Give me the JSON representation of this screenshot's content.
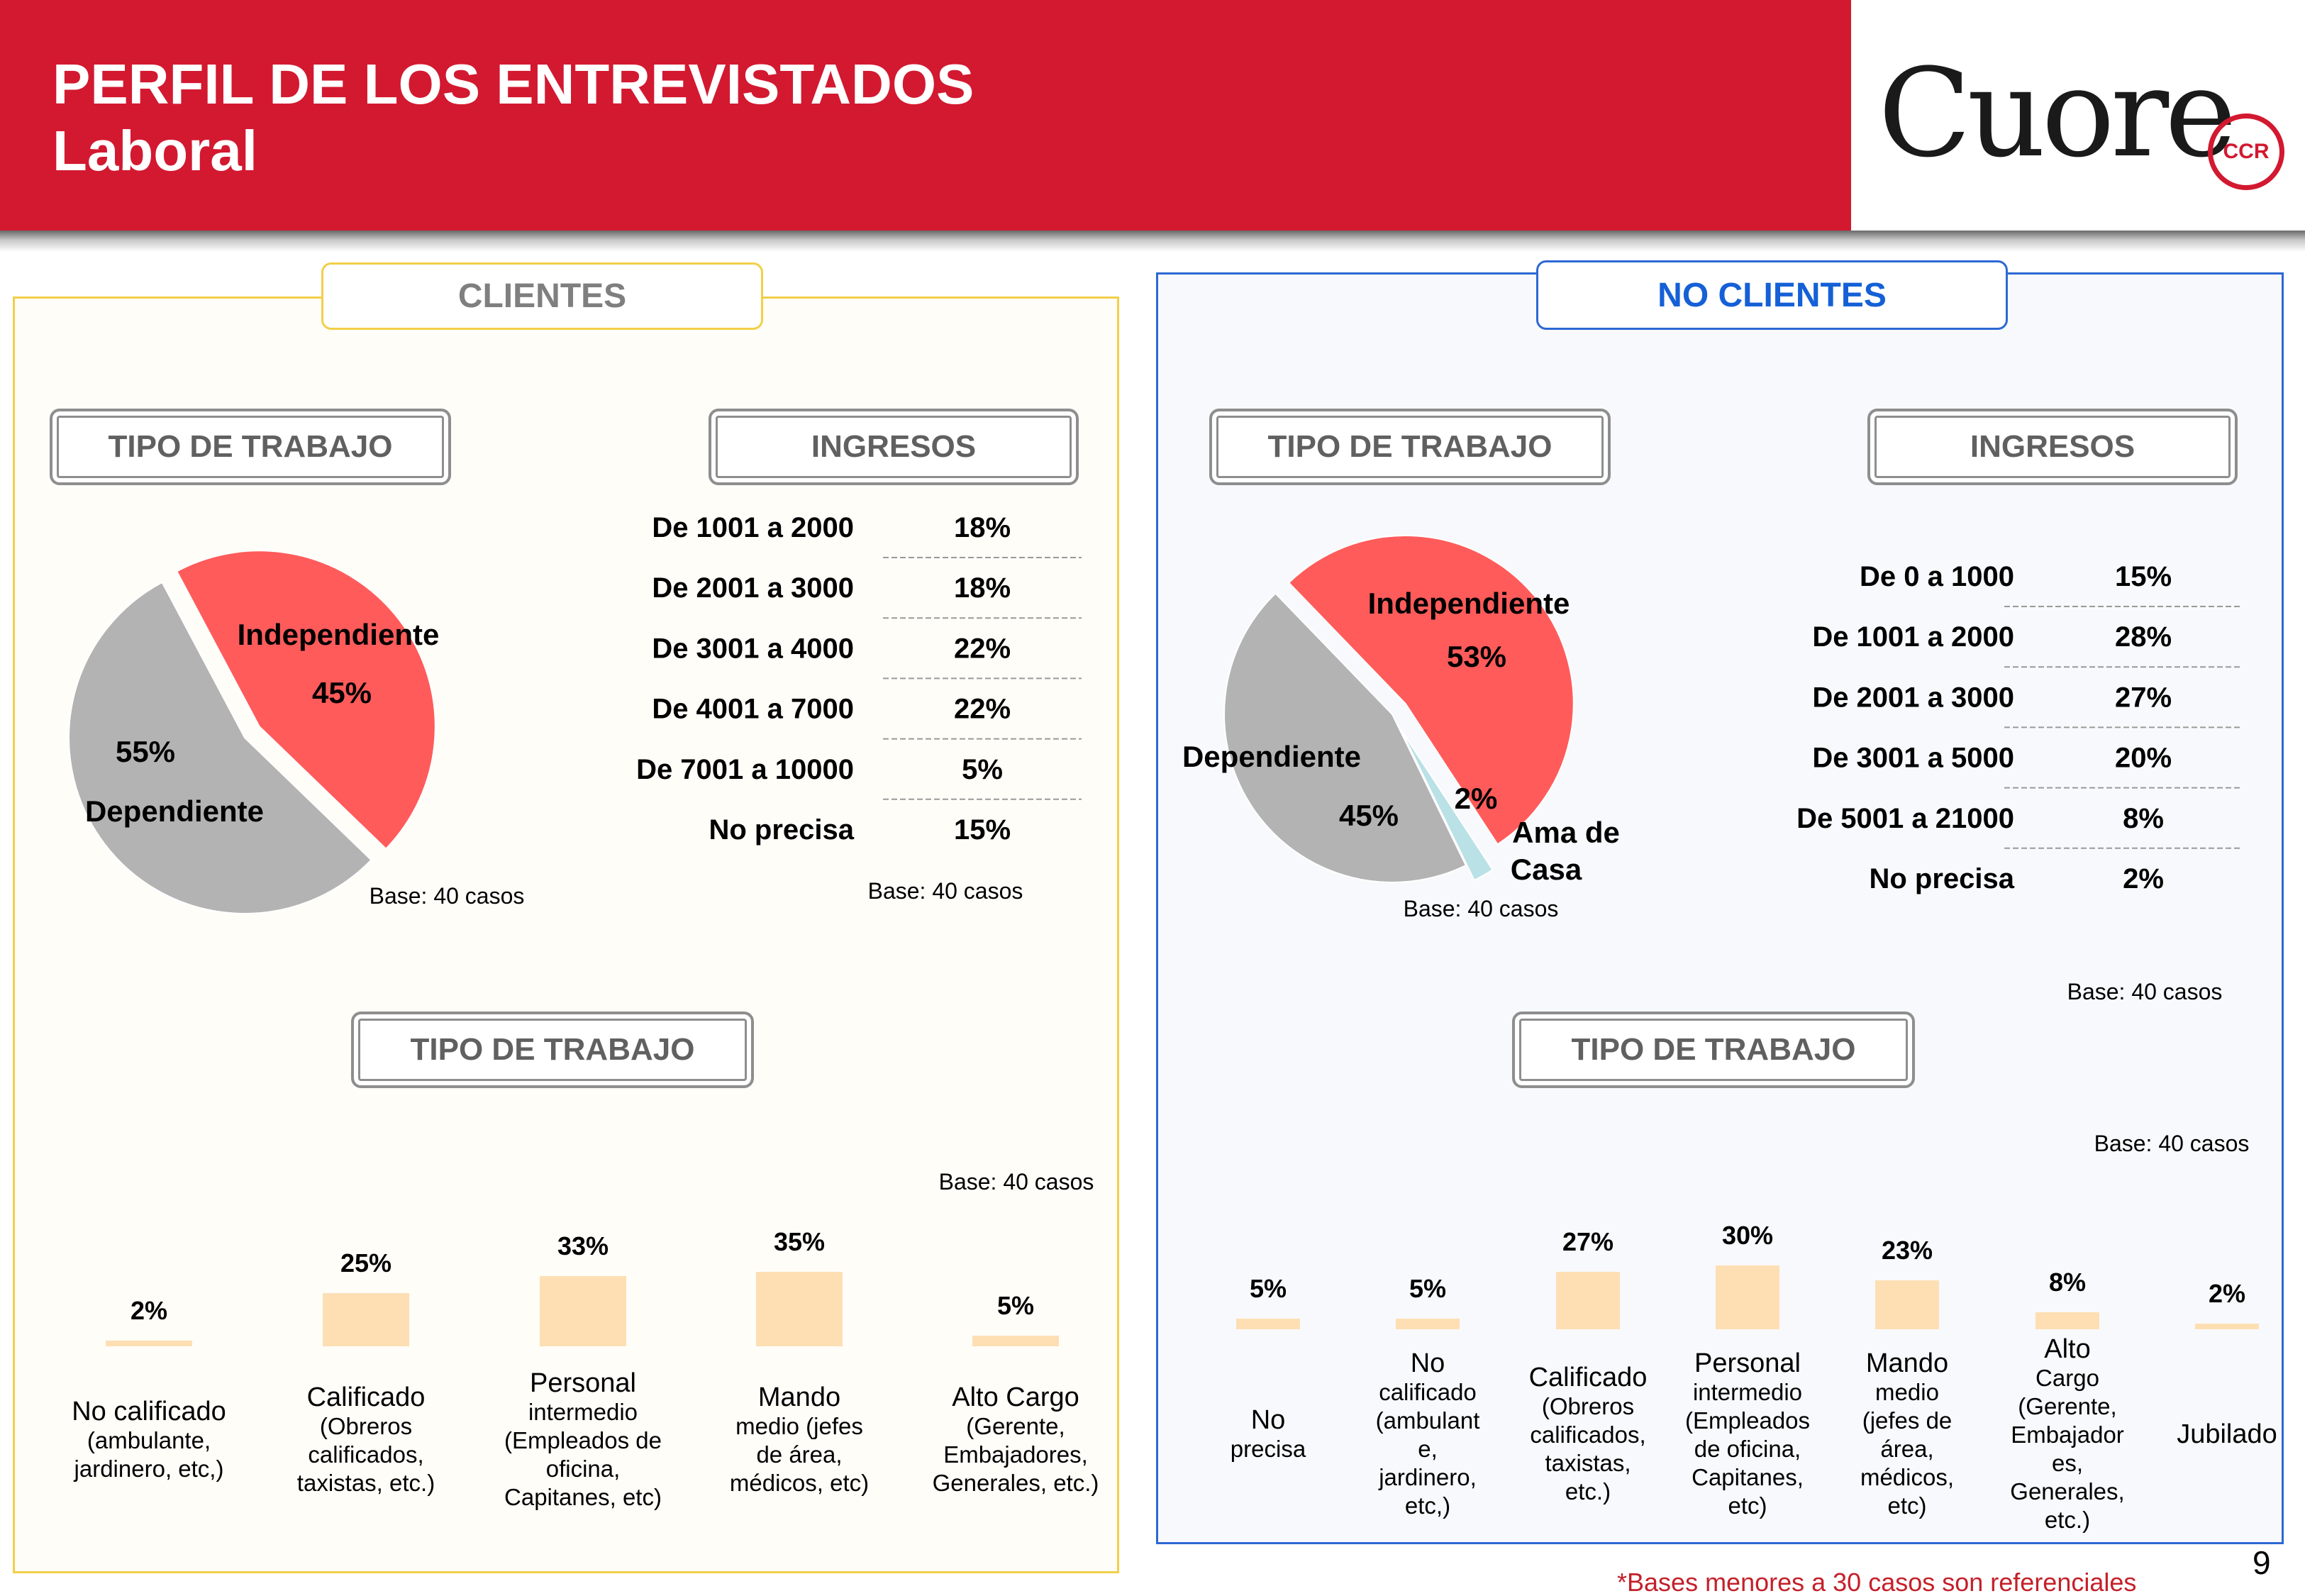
{
  "header": {
    "title_line1": "PERFIL DE LOS ENTREVISTADOS",
    "title_line2": "Laboral",
    "logo_text": "Cuore",
    "logo_seal_text": "CCR"
  },
  "tabs": {
    "clientes": "CLIENTES",
    "no_clientes": "NO CLIENTES"
  },
  "labels": {
    "tipo_trabajo": "TIPO DE TRABAJO",
    "ingresos": "INGRESOS"
  },
  "colors": {
    "header_red": "#d21930",
    "independiente": "#ff5b5b",
    "dependiente": "#b3b3b3",
    "ama_de_casa": "#b9e1e6",
    "bar": "#fddfb3",
    "panel_left_border": "#f2cf49",
    "panel_right_border": "#2d68d4"
  },
  "page_number": "9",
  "footnote": "*Bases menores a 30 casos son referenciales",
  "chart_data": [
    {
      "id": "clientes-tipo-trabajo-pie",
      "type": "pie",
      "base": "Base:  40 casos",
      "slices": [
        {
          "name": "Independiente",
          "value": 45,
          "label": "45%",
          "exploded": true
        },
        {
          "name": "Dependiente",
          "value": 55,
          "label": "55%"
        }
      ]
    },
    {
      "id": "clientes-ingresos",
      "type": "table",
      "base": "Base:  40 casos",
      "rows": [
        {
          "range": "De 1001 a 2000",
          "value": "18%"
        },
        {
          "range": "De 2001 a 3000",
          "value": "18%"
        },
        {
          "range": "De 3001 a 4000",
          "value": "22%"
        },
        {
          "range": "De 4001 a 7000",
          "value": "22%"
        },
        {
          "range": "De 7001 a 10000",
          "value": "5%"
        },
        {
          "range": "No precisa",
          "value": "15%"
        }
      ]
    },
    {
      "id": "no-clientes-tipo-trabajo-pie",
      "type": "pie",
      "base": "Base:  40 casos",
      "slices": [
        {
          "name": "Independiente",
          "value": 53,
          "label": "53%",
          "exploded": true
        },
        {
          "name": "Ama de Casa",
          "value": 2,
          "label": "2%",
          "exploded": true
        },
        {
          "name": "Dependiente",
          "value": 45,
          "label": "45%"
        }
      ]
    },
    {
      "id": "no-clientes-ingresos",
      "type": "table",
      "base": "Base: 40 casos",
      "rows": [
        {
          "range": "De 0 a 1000",
          "value": "15%"
        },
        {
          "range": "De 1001 a 2000",
          "value": "28%"
        },
        {
          "range": "De 2001 a 3000",
          "value": "27%"
        },
        {
          "range": "De 3001 a 5000",
          "value": "20%"
        },
        {
          "range": "De 5001 a 21000",
          "value": "8%"
        },
        {
          "range": "No precisa",
          "value": "2%"
        }
      ]
    },
    {
      "id": "clientes-tipo-trabajo-bar",
      "type": "bar",
      "base": "Base: 40 casos",
      "categories": [
        [
          "No calificado",
          "(ambulante,",
          "jardinero, etc,)"
        ],
        [
          "Calificado",
          "(Obreros",
          "calificados,",
          "taxistas, etc.)"
        ],
        [
          "Personal",
          "intermedio",
          "(Empleados de",
          "oficina,",
          "Capitanes, etc)"
        ],
        [
          "Mando",
          "medio (jefes",
          "de área,",
          "médicos, etc)"
        ],
        [
          "Alto Cargo",
          "(Gerente,",
          "Embajadores,",
          "Generales, etc.)"
        ]
      ],
      "values": [
        2,
        25,
        33,
        35,
        5
      ],
      "value_labels": [
        "2%",
        "25%",
        "33%",
        "35%",
        "5%"
      ]
    },
    {
      "id": "no-clientes-tipo-trabajo-bar",
      "type": "bar",
      "base": "Base:  40 casos",
      "categories": [
        [
          "No",
          "precisa"
        ],
        [
          "No",
          "calificado",
          "(ambulant",
          "e,",
          "jardinero,",
          "etc,)"
        ],
        [
          "Calificado",
          "(Obreros",
          "calificados,",
          "taxistas,",
          "etc.)"
        ],
        [
          "Personal",
          "intermedio",
          "(Empleados",
          "de oficina,",
          "Capitanes,",
          "etc)"
        ],
        [
          "Mando",
          "medio",
          "(jefes de",
          "área,",
          "médicos,",
          "etc)"
        ],
        [
          "Alto",
          "Cargo",
          "(Gerente,",
          "Embajador",
          "es,",
          "Generales,",
          "etc.)"
        ],
        [
          "Jubilado"
        ]
      ],
      "values": [
        5,
        5,
        27,
        30,
        23,
        8,
        2
      ],
      "value_labels": [
        "5%",
        "5%",
        "27%",
        "30%",
        "23%",
        "8%",
        "2%"
      ]
    }
  ]
}
